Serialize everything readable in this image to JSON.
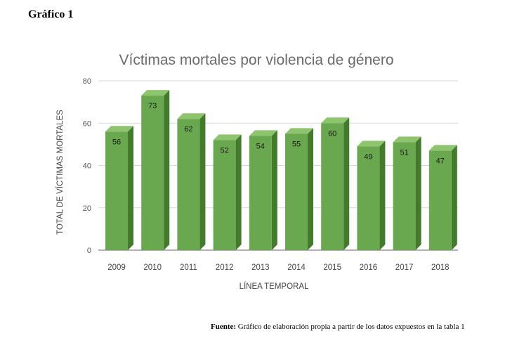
{
  "heading": "Gráfico 1",
  "source": {
    "label": "Fuente:",
    "text": "Gráfico de elaboración propia a partir de los datos expuestos en la tabla 1"
  },
  "chart_data": {
    "type": "bar",
    "title": "Víctimas mortales por violencia de género",
    "xlabel": "LÍNEA TEMPORAL",
    "ylabel": "TOTAL DE VÍCTIMAS MORTALES",
    "categories": [
      "2009",
      "2010",
      "2011",
      "2012",
      "2013",
      "2014",
      "2015",
      "2016",
      "2017",
      "2018"
    ],
    "values": [
      56,
      73,
      62,
      52,
      54,
      55,
      60,
      49,
      51,
      47
    ],
    "ylim": [
      0,
      80
    ],
    "yticks": [
      0,
      20,
      40,
      60,
      80
    ],
    "grid": true,
    "legend": "none",
    "style": "3d",
    "colors": {
      "front": "#6aa84f",
      "top": "#8ec46e",
      "side": "#447a2c"
    }
  }
}
